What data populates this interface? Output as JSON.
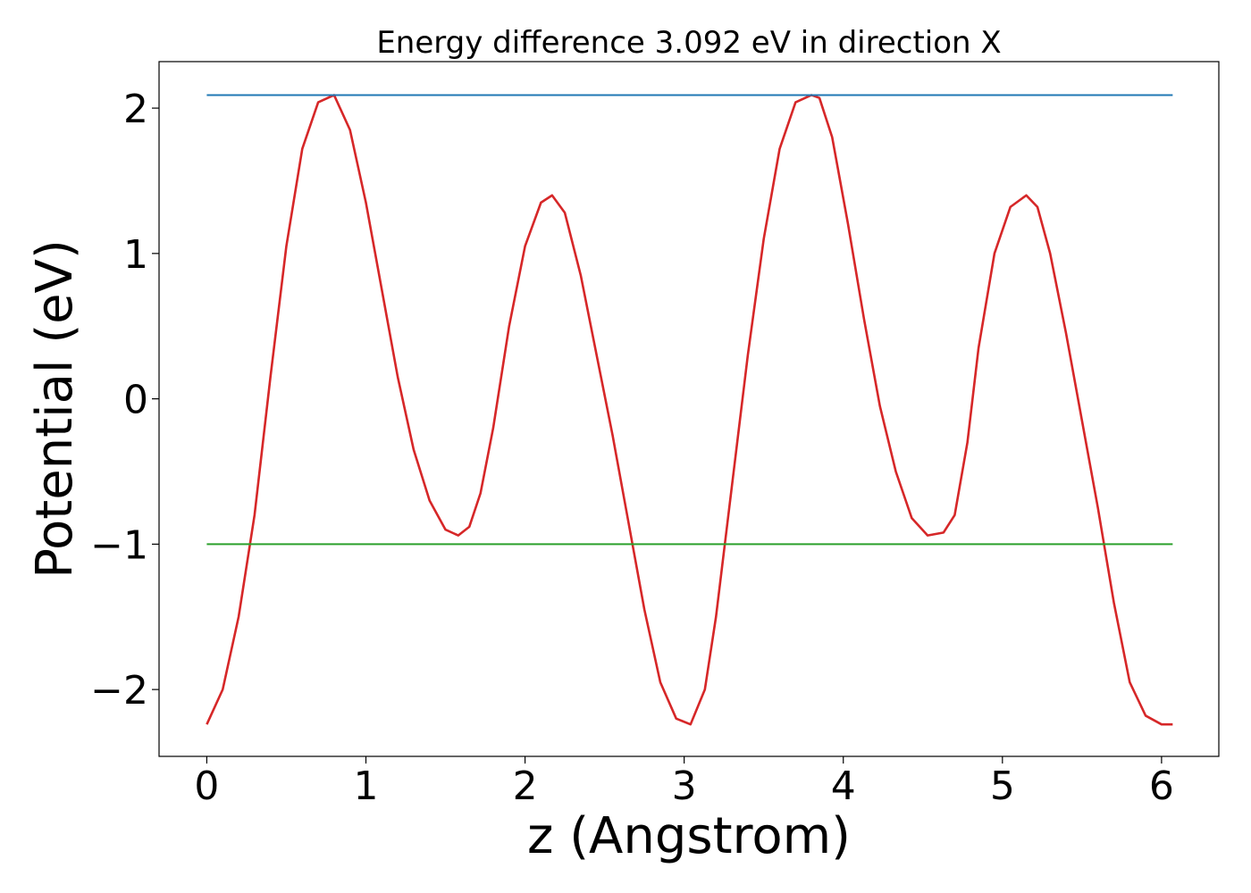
{
  "chart_data": {
    "type": "line",
    "title": "Energy difference 3.092 eV in direction X",
    "xlabel": "z (Angstrom)",
    "ylabel": "Potential (eV)",
    "xlim": [
      -0.3,
      6.36
    ],
    "ylim": [
      -2.46,
      2.32
    ],
    "xticks": [
      0,
      1,
      2,
      3,
      4,
      5,
      6
    ],
    "xtick_labels": [
      "0",
      "1",
      "2",
      "3",
      "4",
      "5",
      "6"
    ],
    "yticks": [
      -2,
      -1,
      0,
      1,
      2
    ],
    "ytick_labels": [
      "−2",
      "−1",
      "0",
      "1",
      "2"
    ],
    "grid": false,
    "series": [
      {
        "name": "potential",
        "color": "#d62728",
        "x": [
          0.0,
          0.1,
          0.2,
          0.3,
          0.4,
          0.5,
          0.6,
          0.7,
          0.8,
          0.9,
          1.0,
          1.1,
          1.2,
          1.3,
          1.4,
          1.5,
          1.58,
          1.65,
          1.72,
          1.8,
          1.9,
          2.0,
          2.1,
          2.17,
          2.25,
          2.35,
          2.45,
          2.55,
          2.65,
          2.75,
          2.85,
          2.95,
          3.04,
          3.13,
          3.2,
          3.3,
          3.4,
          3.5,
          3.6,
          3.7,
          3.8,
          3.85,
          3.93,
          4.03,
          4.13,
          4.23,
          4.33,
          4.43,
          4.53,
          4.63,
          4.7,
          4.78,
          4.85,
          4.95,
          5.05,
          5.15,
          5.22,
          5.3,
          5.4,
          5.5,
          5.6,
          5.7,
          5.8,
          5.9,
          6.0,
          6.07
        ],
        "y": [
          -2.24,
          -2.0,
          -1.5,
          -0.8,
          0.15,
          1.05,
          1.72,
          2.04,
          2.09,
          1.85,
          1.35,
          0.75,
          0.15,
          -0.35,
          -0.7,
          -0.9,
          -0.94,
          -0.88,
          -0.65,
          -0.2,
          0.5,
          1.05,
          1.35,
          1.4,
          1.28,
          0.85,
          0.3,
          -0.25,
          -0.85,
          -1.45,
          -1.95,
          -2.2,
          -2.24,
          -2.0,
          -1.5,
          -0.6,
          0.3,
          1.1,
          1.72,
          2.04,
          2.09,
          2.07,
          1.8,
          1.2,
          0.55,
          -0.05,
          -0.5,
          -0.82,
          -0.94,
          -0.92,
          -0.8,
          -0.3,
          0.35,
          1.0,
          1.32,
          1.4,
          1.32,
          1.0,
          0.45,
          -0.15,
          -0.75,
          -1.4,
          -1.95,
          -2.18,
          -2.24,
          -2.24
        ]
      },
      {
        "name": "max-level",
        "color": "#1f77b4",
        "x": [
          0.0,
          6.07
        ],
        "y": [
          2.09,
          2.09
        ]
      },
      {
        "name": "min-level",
        "color": "#2ca02c",
        "x": [
          0.0,
          6.07
        ],
        "y": [
          -1.0,
          -1.0
        ]
      }
    ]
  }
}
